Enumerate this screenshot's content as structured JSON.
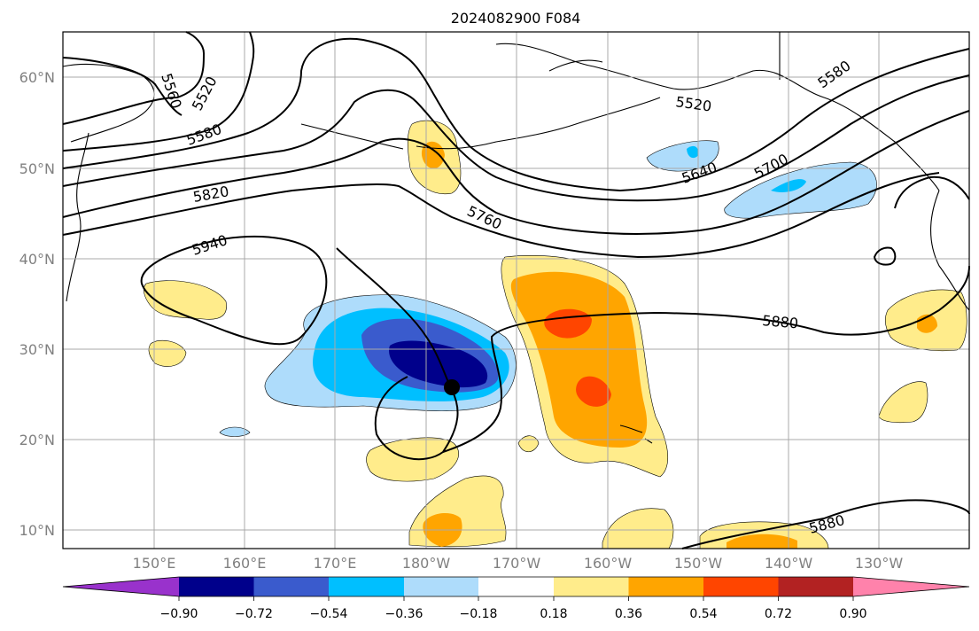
{
  "title": "2024082900 F084",
  "lat_labels": [
    "60°N",
    "50°N",
    "40°N",
    "30°N",
    "20°N",
    "10°N"
  ],
  "lon_labels": [
    "150°E",
    "160°E",
    "170°E",
    "180°W",
    "170°W",
    "160°W",
    "150°W",
    "140°W",
    "130°W"
  ],
  "contour_labels": [
    "5520",
    "5520",
    "5560",
    "5580",
    "5640",
    "5700",
    "5820",
    "5940",
    "5760",
    "5880",
    "5880",
    "5580"
  ],
  "colorbar": {
    "ticks": [
      "−0.90",
      "−0.72",
      "−0.54",
      "−0.36",
      "−0.18",
      "0.18",
      "0.36",
      "0.54",
      "0.72",
      "0.90"
    ],
    "colors": [
      "#9932cc",
      "#00008b",
      "#3a5bcd",
      "#00bfff",
      "#aedcfb",
      "#ffffff",
      "#ffec8b",
      "#ffa500",
      "#ff4500",
      "#b22222",
      "#ff82ab"
    ]
  },
  "marker": "storm-center-marker"
}
